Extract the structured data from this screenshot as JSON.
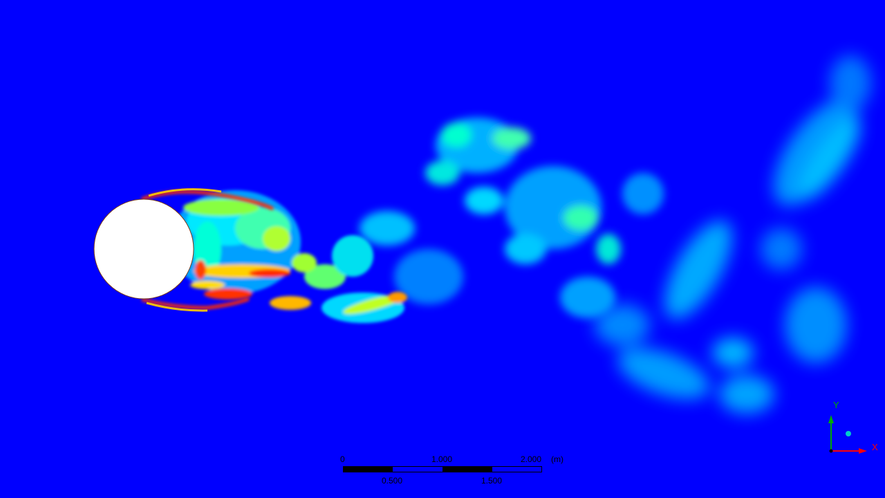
{
  "viewport": {
    "background_color": "#0000ff",
    "colormap": [
      "#0000ff",
      "#00aaff",
      "#00ffcc",
      "#88ff00",
      "#ffff00",
      "#ff8800",
      "#ff0000"
    ],
    "body_color": "#ffffff"
  },
  "scale_bar": {
    "top_labels": [
      "0",
      "1.000",
      "2.000"
    ],
    "unit": "(m)",
    "bottom_labels": [
      "0.500",
      "1.500"
    ]
  },
  "axis_triad": {
    "y_label": "Y",
    "x_label": "X",
    "y_color": "#00aa00",
    "x_color": "#ff0000",
    "z_color": "#00cccc"
  }
}
